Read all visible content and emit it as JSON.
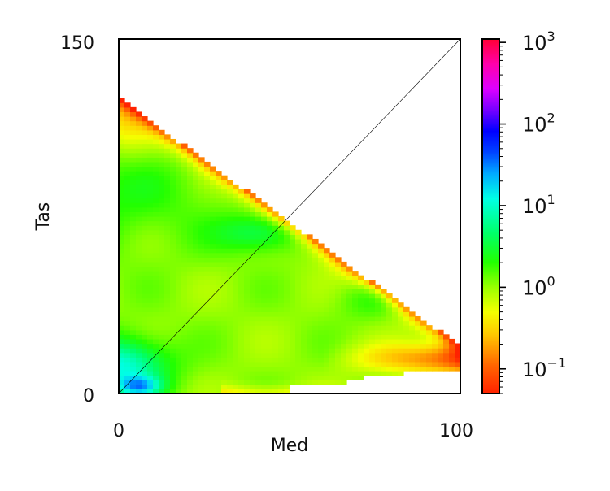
{
  "chart_data": {
    "type": "heatmap",
    "title": "",
    "xlabel": "Med",
    "ylabel": "Tas",
    "xlim": [
      0,
      100
    ],
    "ylim": [
      0,
      150
    ],
    "x_ticks": [
      "0",
      "100"
    ],
    "y_ticks": [
      "0",
      "150"
    ],
    "diagonal_reference_line": true,
    "support_region": "triangle, nonzero where Tas < 125 - 1.05 * Med",
    "colorbar": {
      "scale": "log",
      "colormap": "gist_rainbow_r",
      "range": [
        0.05,
        1100
      ],
      "ticks": [
        {
          "base": "10",
          "exp": "3",
          "value": 1000
        },
        {
          "base": "10",
          "exp": "2",
          "value": 100
        },
        {
          "base": "10",
          "exp": "1",
          "value": 10
        },
        {
          "base": "10",
          "exp": "0",
          "value": 1
        },
        {
          "base": "10",
          "exp": "−1",
          "value": 0.1
        }
      ]
    },
    "features": [
      {
        "region": "near origin (Med 0-15, Tas 0-15)",
        "value_approx": 80
      },
      {
        "region": "lower-left band (Med 0-30, Tas 10-30)",
        "value_approx": 8
      },
      {
        "region": "central band (Med 30-55, Tas 60-75)",
        "value_approx": 4
      },
      {
        "region": "bulk interior",
        "value_approx": 1
      },
      {
        "region": "upper-left edge (Med 0-20, Tas 80-125)",
        "value_approx": 0.4
      },
      {
        "region": "bottom-right near hypotenuse (Med 65-100, Tas 10-30)",
        "value_approx": 0.07
      }
    ]
  }
}
